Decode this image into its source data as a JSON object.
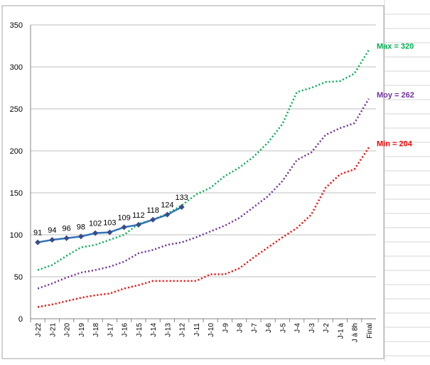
{
  "chart_data": {
    "type": "line",
    "categories": [
      "J-22",
      "J-21",
      "J-20",
      "J-19",
      "J-18",
      "J-17",
      "J-16",
      "J-15",
      "J-14",
      "J-13",
      "J-12",
      "J-11",
      "J-10",
      "J-9",
      "J-8",
      "J-7",
      "J-6",
      "J-5",
      "J-4",
      "J-3",
      "J-2",
      "J-1 à",
      "J à 8h",
      "Final"
    ],
    "series": [
      {
        "color": "#00b050",
        "style": "dotted",
        "values": [
          58,
          64,
          75,
          85,
          88,
          94,
          100,
          113,
          118,
          125,
          135,
          148,
          156,
          170,
          180,
          193,
          210,
          232,
          270,
          275,
          282,
          283,
          292,
          320
        ]
      },
      {
        "color": "#7030a0",
        "style": "dotted",
        "values": [
          36,
          42,
          49,
          55,
          58,
          62,
          68,
          78,
          82,
          88,
          91,
          97,
          104,
          111,
          120,
          133,
          146,
          164,
          189,
          198,
          219,
          227,
          233,
          262
        ]
      },
      {
        "color": "#ff0000",
        "style": "dotted",
        "values": [
          14,
          17,
          21,
          25,
          28,
          30,
          36,
          40,
          45,
          45,
          45,
          45,
          53,
          53,
          60,
          73,
          85,
          97,
          108,
          124,
          156,
          172,
          178,
          204
        ]
      },
      {
        "color": "#2e75b6",
        "marker_color": "#3b4a8a",
        "style": "solid",
        "data_labels": true,
        "values": [
          91,
          94,
          96,
          98,
          102,
          103,
          109,
          112,
          118,
          124,
          133,
          null,
          null,
          null,
          null,
          null,
          null,
          null,
          null,
          null,
          null,
          null,
          null,
          null
        ]
      }
    ],
    "annotations": [
      {
        "text": "Max = 320",
        "color": "#00b050"
      },
      {
        "text": "Moy = 262",
        "color": "#7030a0"
      },
      {
        "text": "Min = 204",
        "color": "#ff0000"
      }
    ],
    "ylim": [
      0,
      350
    ],
    "yticks": [
      0,
      50,
      100,
      150,
      200,
      250,
      300,
      350
    ],
    "grid": true
  }
}
